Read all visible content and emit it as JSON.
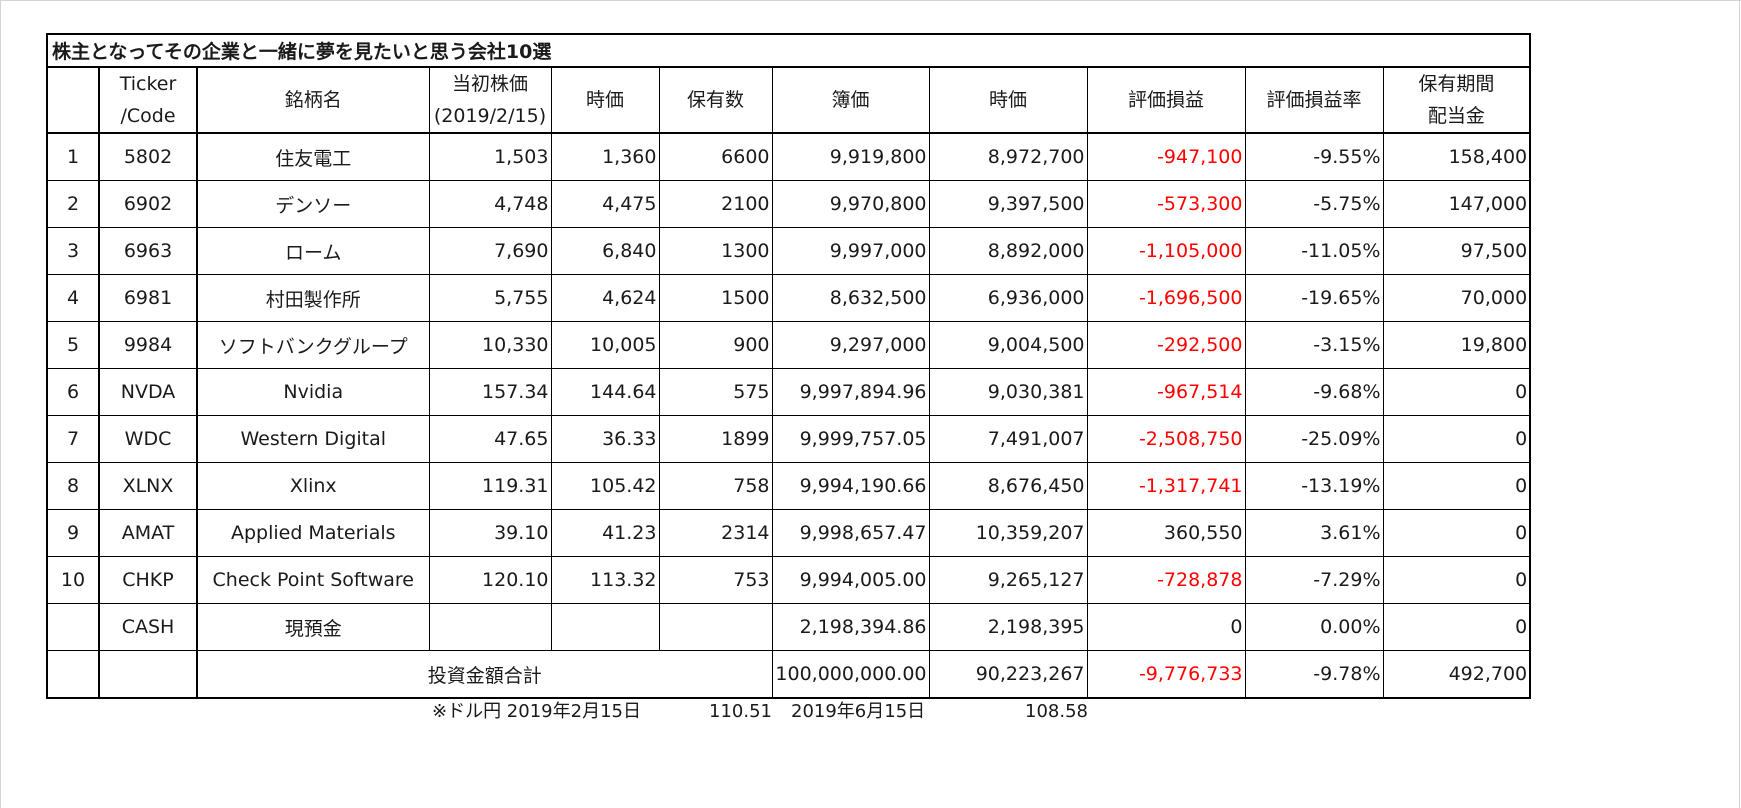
{
  "title": "株主となってその企業と一緒に夢を見たいと思う会社10選",
  "headers": {
    "index": "",
    "ticker_line1": "Ticker",
    "ticker_line2": "/Code",
    "name": "銘柄名",
    "initial_price_line1": "当初株価",
    "initial_price_line2": "(2019/2/15)",
    "current_price": "時価",
    "shares": "保有数",
    "book_value": "簿価",
    "market_value": "時価",
    "unrealized_pl": "評価損益",
    "unrealized_pl_rate": "評価損益率",
    "dividend_line1": "保有期間",
    "dividend_line2": "配当金"
  },
  "rows": [
    {
      "no": "1",
      "ticker": "5802",
      "name": "住友電工",
      "initial_price": "1,503",
      "current_price": "1,360",
      "shares": "6600",
      "book_value": "9,919,800",
      "market_value": "8,972,700",
      "pl": "-947,100",
      "pl_negative": true,
      "pl_rate": "-9.55%",
      "dividend": "158,400"
    },
    {
      "no": "2",
      "ticker": "6902",
      "name": "デンソー",
      "initial_price": "4,748",
      "current_price": "4,475",
      "shares": "2100",
      "book_value": "9,970,800",
      "market_value": "9,397,500",
      "pl": "-573,300",
      "pl_negative": true,
      "pl_rate": "-5.75%",
      "dividend": "147,000"
    },
    {
      "no": "3",
      "ticker": "6963",
      "name": "ローム",
      "initial_price": "7,690",
      "current_price": "6,840",
      "shares": "1300",
      "book_value": "9,997,000",
      "market_value": "8,892,000",
      "pl": "-1,105,000",
      "pl_negative": true,
      "pl_rate": "-11.05%",
      "dividend": "97,500"
    },
    {
      "no": "4",
      "ticker": "6981",
      "name": "村田製作所",
      "initial_price": "5,755",
      "current_price": "4,624",
      "shares": "1500",
      "book_value": "8,632,500",
      "market_value": "6,936,000",
      "pl": "-1,696,500",
      "pl_negative": true,
      "pl_rate": "-19.65%",
      "dividend": "70,000"
    },
    {
      "no": "5",
      "ticker": "9984",
      "name": "ソフトバンクグループ",
      "initial_price": "10,330",
      "current_price": "10,005",
      "shares": "900",
      "book_value": "9,297,000",
      "market_value": "9,004,500",
      "pl": "-292,500",
      "pl_negative": true,
      "pl_rate": "-3.15%",
      "dividend": "19,800"
    },
    {
      "no": "6",
      "ticker": "NVDA",
      "name": "Nvidia",
      "initial_price": "157.34",
      "current_price": "144.64",
      "shares": "575",
      "book_value": "9,997,894.96",
      "market_value": "9,030,381",
      "pl": "-967,514",
      "pl_negative": true,
      "pl_rate": "-9.68%",
      "dividend": "0"
    },
    {
      "no": "7",
      "ticker": "WDC",
      "name": "Western Digital",
      "initial_price": "47.65",
      "current_price": "36.33",
      "shares": "1899",
      "book_value": "9,999,757.05",
      "market_value": "7,491,007",
      "pl": "-2,508,750",
      "pl_negative": true,
      "pl_rate": "-25.09%",
      "dividend": "0"
    },
    {
      "no": "8",
      "ticker": "XLNX",
      "name": "Xlinx",
      "initial_price": "119.31",
      "current_price": "105.42",
      "shares": "758",
      "book_value": "9,994,190.66",
      "market_value": "8,676,450",
      "pl": "-1,317,741",
      "pl_negative": true,
      "pl_rate": "-13.19%",
      "dividend": "0"
    },
    {
      "no": "9",
      "ticker": "AMAT",
      "name": "Applied Materials",
      "initial_price": "39.10",
      "current_price": "41.23",
      "shares": "2314",
      "book_value": "9,998,657.47",
      "market_value": "10,359,207",
      "pl": "360,550",
      "pl_negative": false,
      "pl_rate": "3.61%",
      "dividend": "0"
    },
    {
      "no": "10",
      "ticker": "CHKP",
      "name": "Check Point Software",
      "initial_price": "120.10",
      "current_price": "113.32",
      "shares": "753",
      "book_value": "9,994,005.00",
      "market_value": "9,265,127",
      "pl": "-728,878",
      "pl_negative": true,
      "pl_rate": "-7.29%",
      "dividend": "0"
    },
    {
      "no": "",
      "ticker": "CASH",
      "name": "現預金",
      "initial_price": "",
      "current_price": "",
      "shares": "",
      "book_value": "2,198,394.86",
      "market_value": "2,198,395",
      "pl": "0",
      "pl_negative": false,
      "pl_rate": "0.00%",
      "dividend": "0"
    }
  ],
  "total": {
    "label": "投資金額合計",
    "book_value": "100,000,000.00",
    "market_value": "90,223,267",
    "pl": "-9,776,733",
    "pl_negative": true,
    "pl_rate": "-9.78%",
    "dividend": "492,700"
  },
  "fx_note": {
    "label": "※ドル円 2019年2月15日",
    "rate_initial": "110.51",
    "date_current": "2019年6月15日",
    "rate_current": "108.58"
  },
  "colors": {
    "negative": "#ff0000",
    "text": "#1a1a1a",
    "border": "#000000"
  }
}
